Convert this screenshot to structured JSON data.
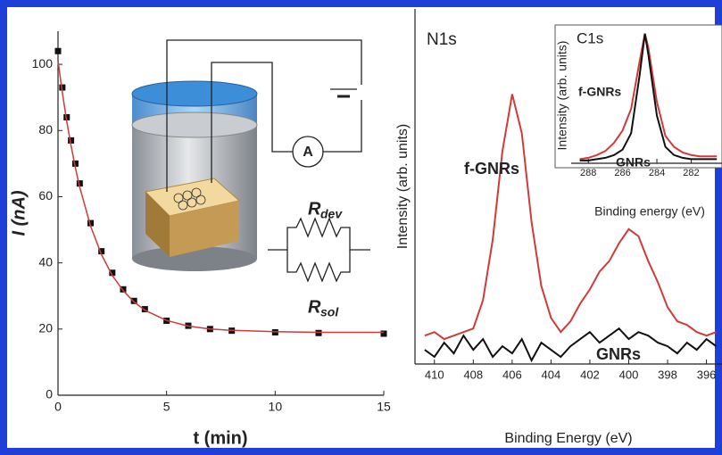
{
  "chart_data": [
    {
      "type": "line",
      "x_label": "t (min)",
      "y_label": "I (nA)",
      "x": [
        0,
        0.2,
        0.4,
        0.6,
        0.8,
        1,
        1.5,
        2,
        2.5,
        3,
        3.5,
        4,
        5,
        6,
        7,
        8,
        10,
        12,
        15
      ],
      "series": [
        {
          "color": "#111111",
          "marker": "square",
          "values": [
            104,
            93,
            84,
            77,
            70,
            64,
            52,
            43.5,
            37,
            32,
            28.5,
            26,
            22.5,
            21,
            20,
            19.5,
            19,
            18.8,
            18.6
          ]
        },
        {
          "color": "#d03a3a",
          "values": [
            101,
            91.4,
            82.9,
            75.4,
            68.7,
            62.9,
            51.1,
            42.5,
            36.2,
            31.6,
            28.2,
            25.7,
            22.6,
            20.9,
            20,
            19.6,
            19.2,
            19,
            19
          ]
        }
      ],
      "xlim": [
        0,
        15
      ],
      "xticks": [
        0,
        5,
        10,
        15
      ],
      "ylim": [
        0,
        110
      ],
      "yticks": [
        0,
        20,
        40,
        60,
        80,
        100
      ],
      "circuit_labels": [
        {
          "main": "A"
        },
        {
          "main": "R",
          "sub": "dev"
        },
        {
          "main": "R",
          "sub": "sol"
        }
      ]
    },
    {
      "type": "line",
      "title": "N1s",
      "x_label": "Binding Energy (eV)",
      "y_label": "Intensity (arb. units)",
      "x": [
        410.5,
        410,
        409.5,
        409,
        408.5,
        408,
        407.5,
        407,
        406.5,
        406,
        405.5,
        405,
        404.5,
        404,
        403.5,
        403,
        402.5,
        402,
        401.5,
        401,
        400.5,
        400,
        399.5,
        399,
        398.5,
        398,
        397.5,
        397,
        396.5,
        396,
        395.5
      ],
      "series": [
        {
          "name": "f-GNRs",
          "color": "#d03a3a",
          "values": [
            0.8,
            0.9,
            0.7,
            0.8,
            0.9,
            1.0,
            1.8,
            3.5,
            6.0,
            7.6,
            6.5,
            4.0,
            2.2,
            1.3,
            0.9,
            1.2,
            1.7,
            2.1,
            2.6,
            2.9,
            3.4,
            3.8,
            3.6,
            2.9,
            2.3,
            1.6,
            1.2,
            1.1,
            0.9,
            0.8,
            0.9
          ]
        },
        {
          "name": "GNRs",
          "color": "#111111",
          "values": [
            0.4,
            0.2,
            0.6,
            0.3,
            0.8,
            0.4,
            0.7,
            0.2,
            0.5,
            0.3,
            0.7,
            0.1,
            0.6,
            0.4,
            0.2,
            0.5,
            0.7,
            0.9,
            0.6,
            0.8,
            1.0,
            0.7,
            0.9,
            0.8,
            0.6,
            0.5,
            0.3,
            0.6,
            0.4,
            0.7,
            0.5
          ]
        }
      ],
      "xlim": [
        411,
        395.2
      ],
      "xticks": [
        410,
        408,
        406,
        404,
        402,
        400,
        398,
        396
      ],
      "ylim": [
        0,
        10
      ]
    },
    {
      "type": "line",
      "title": "C1s",
      "x_label": "Binding energy (eV)",
      "y_label": "Intensity (arb. units)",
      "x": [
        288.5,
        288,
        287.5,
        287,
        286.5,
        286,
        285.5,
        285,
        284.7,
        284.5,
        284,
        283.5,
        283,
        282.5,
        282,
        281.5,
        281,
        280.5
      ],
      "series": [
        {
          "name": "f-GNRs",
          "color": "#d03a3a",
          "values": [
            0.3,
            0.4,
            0.6,
            0.9,
            1.5,
            2.4,
            4.0,
            7.5,
            9.5,
            8.5,
            4.5,
            2.0,
            1.2,
            0.8,
            0.6,
            0.5,
            0.5,
            0.5
          ]
        },
        {
          "name": "GNRs",
          "color": "#111111",
          "values": [
            0.2,
            0.2,
            0.3,
            0.4,
            0.6,
            1.0,
            2.2,
            6.5,
            9.5,
            8.0,
            3.5,
            1.2,
            0.6,
            0.4,
            0.3,
            0.3,
            0.3,
            0.3
          ]
        }
      ],
      "xlim": [
        289,
        280.2
      ],
      "xticks": [
        288,
        286,
        284,
        282
      ],
      "ylim": [
        0,
        10
      ]
    }
  ]
}
